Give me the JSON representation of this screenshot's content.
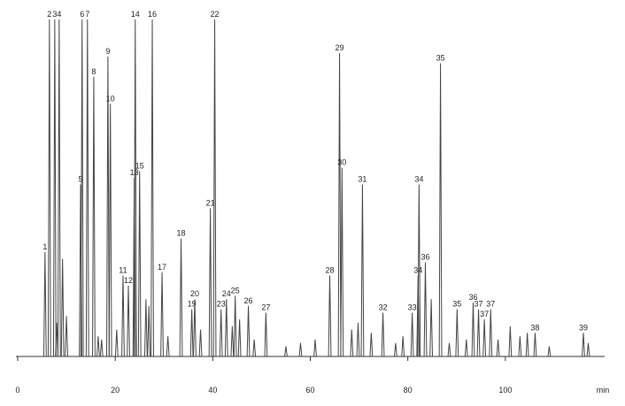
{
  "chart_data": {
    "type": "peaks",
    "x_label": "min",
    "xlim": [
      0,
      120
    ],
    "ylim": [
      0,
      100
    ],
    "xticks": [
      0,
      20,
      40,
      60,
      80,
      100
    ],
    "color": "#444444",
    "x": [
      5.6,
      6.5,
      7.6,
      8.5,
      12.9,
      13.2,
      14.3,
      15.6,
      18.5,
      19.0,
      21.6,
      22.7,
      23.9,
      24.1,
      25.0,
      27.6,
      29.6,
      33.5,
      35.7,
      36.3,
      39.5,
      40.4,
      41.7,
      42.8,
      44.6,
      47.3,
      50.9,
      64.0,
      66.0,
      66.5,
      70.7,
      74.9,
      80.9,
      82.1,
      82.3,
      83.6,
      86.7,
      90.1,
      93.4,
      94.5,
      95.7,
      97.0,
      106.1,
      116.0,
      8.0,
      9.2,
      10.0,
      16.5,
      17.2,
      20.3,
      26.3,
      26.9,
      30.8,
      37.5,
      44.0,
      45.5,
      48.5,
      55.0,
      58.0,
      61.0,
      68.5,
      69.8,
      72.5,
      77.5,
      79.0,
      84.8,
      88.5,
      92.0,
      98.5,
      101.0,
      103.0,
      104.5,
      109.0,
      117.0
    ],
    "values": [
      31,
      100,
      100,
      100,
      51,
      100,
      100,
      83,
      89,
      75,
      24,
      21,
      53,
      100,
      55,
      100,
      25,
      35,
      14,
      17,
      44,
      100,
      14,
      17,
      18,
      15,
      13,
      24,
      90,
      56,
      51,
      13,
      13,
      24,
      51,
      28,
      87,
      14,
      16,
      14,
      11,
      14,
      7,
      7,
      10,
      29,
      12,
      6,
      5,
      8,
      17,
      15,
      6,
      8,
      9,
      11,
      5,
      3,
      4,
      5,
      8,
      10,
      7,
      4,
      6,
      17,
      4,
      5,
      5,
      9,
      6,
      7,
      3,
      4
    ],
    "labels": [
      "1",
      "2",
      "3",
      "4",
      "5",
      "6",
      "7",
      "8",
      "9",
      "10",
      "11",
      "12",
      "13",
      "14",
      "15",
      "16",
      "17",
      "18",
      "19",
      "20",
      "21",
      "22",
      "23",
      "24",
      "25",
      "26",
      "27",
      "28",
      "29",
      "30",
      "31",
      "32",
      "33",
      "34",
      "34",
      "36",
      "35",
      "35",
      "36",
      "37",
      "37",
      "37",
      "38",
      "39",
      null,
      null,
      null,
      null,
      null,
      null,
      null,
      null,
      null,
      null,
      null,
      null,
      null,
      null,
      null,
      null,
      null,
      null,
      null,
      null,
      null,
      null,
      null,
      null,
      null,
      null,
      null,
      null,
      null,
      null
    ]
  }
}
